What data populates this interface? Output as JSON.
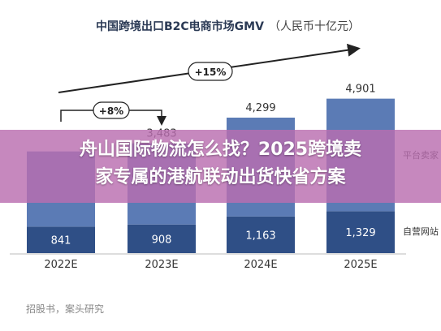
{
  "chart_data": {
    "type": "bar",
    "title": "中国跨境出口B2C电商市场GMV",
    "unit_label": "（人民币十亿元）",
    "categories": [
      "2022E",
      "2023E",
      "2024E",
      "2025E"
    ],
    "series": [
      {
        "name": "自营网站",
        "values": [
          841,
          908,
          1163,
          1329
        ],
        "labels": [
          "841",
          "908",
          "1,163",
          "1,329"
        ],
        "color": "#2f4f86"
      },
      {
        "name": "平台卖家",
        "values": [
          2385,
          2575,
          3136,
          3572
        ],
        "color": "#5b7bb5"
      }
    ],
    "totals": [
      {
        "category": "2023E",
        "label": "3,483"
      },
      {
        "category": "2024E",
        "label": "4,299"
      },
      {
        "category": "2025E",
        "label": "4,901"
      }
    ],
    "annotations": [
      {
        "label": "+8%",
        "from": "2022E",
        "to": "2023E"
      },
      {
        "label": "+15%",
        "from": "2022E",
        "to": "2025E"
      }
    ],
    "ylim": [
      0,
      5200
    ],
    "grid": false,
    "legend": "right"
  },
  "overlay": {
    "line1": "舟山国际物流怎么找？2025跨境卖",
    "line2": "家专属的港航联动出货快省方案"
  },
  "source_text": "招股书，案头研究"
}
